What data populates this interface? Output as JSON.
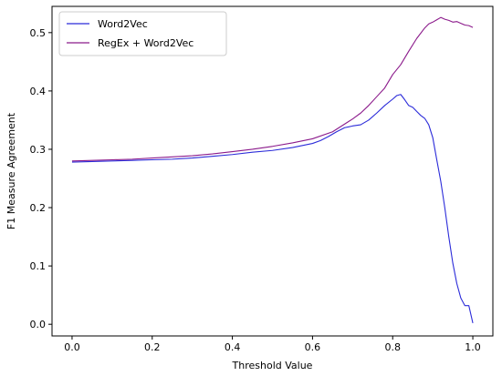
{
  "chart_data": {
    "type": "line",
    "xlabel": "Threshold Value",
    "ylabel": "F1 Measure Agreement",
    "xlim": [
      -0.05,
      1.05
    ],
    "ylim": [
      -0.02,
      0.545
    ],
    "xticks": [
      0.0,
      0.2,
      0.4,
      0.6,
      0.8,
      1.0
    ],
    "xtick_labels": [
      "0.0",
      "0.2",
      "0.4",
      "0.6",
      "0.8",
      "1.0"
    ],
    "yticks": [
      0.0,
      0.1,
      0.2,
      0.3,
      0.4,
      0.5
    ],
    "ytick_labels": [
      "0.0",
      "0.1",
      "0.2",
      "0.3",
      "0.4",
      "0.5"
    ],
    "grid": false,
    "legend": {
      "placement": "top-left"
    },
    "series": [
      {
        "name": "Word2Vec",
        "color": "#2b2bd9",
        "x": [
          0.0,
          0.05,
          0.1,
          0.15,
          0.2,
          0.25,
          0.3,
          0.35,
          0.4,
          0.45,
          0.5,
          0.55,
          0.6,
          0.62,
          0.64,
          0.66,
          0.68,
          0.7,
          0.72,
          0.74,
          0.76,
          0.78,
          0.8,
          0.81,
          0.82,
          0.83,
          0.84,
          0.85,
          0.86,
          0.87,
          0.88,
          0.89,
          0.9,
          0.91,
          0.92,
          0.93,
          0.94,
          0.95,
          0.96,
          0.97,
          0.98,
          0.99,
          1.0
        ],
        "y": [
          0.278,
          0.279,
          0.28,
          0.281,
          0.282,
          0.283,
          0.285,
          0.288,
          0.291,
          0.295,
          0.298,
          0.303,
          0.31,
          0.315,
          0.322,
          0.33,
          0.337,
          0.34,
          0.342,
          0.35,
          0.362,
          0.375,
          0.386,
          0.392,
          0.394,
          0.385,
          0.375,
          0.372,
          0.365,
          0.358,
          0.353,
          0.342,
          0.32,
          0.282,
          0.245,
          0.2,
          0.15,
          0.105,
          0.07,
          0.045,
          0.032,
          0.032,
          0.002
        ]
      },
      {
        "name": "RegEx + Word2Vec",
        "color": "#8b1a8b",
        "x": [
          0.0,
          0.05,
          0.1,
          0.15,
          0.2,
          0.25,
          0.3,
          0.35,
          0.4,
          0.45,
          0.5,
          0.55,
          0.6,
          0.65,
          0.7,
          0.72,
          0.74,
          0.76,
          0.78,
          0.8,
          0.82,
          0.84,
          0.86,
          0.88,
          0.89,
          0.9,
          0.91,
          0.92,
          0.93,
          0.94,
          0.95,
          0.96,
          0.97,
          0.98,
          0.99,
          1.0
        ],
        "y": [
          0.28,
          0.281,
          0.282,
          0.283,
          0.285,
          0.287,
          0.289,
          0.292,
          0.296,
          0.3,
          0.305,
          0.311,
          0.318,
          0.33,
          0.352,
          0.362,
          0.375,
          0.39,
          0.405,
          0.428,
          0.445,
          0.468,
          0.49,
          0.508,
          0.515,
          0.518,
          0.522,
          0.526,
          0.523,
          0.521,
          0.518,
          0.519,
          0.516,
          0.513,
          0.512,
          0.509
        ]
      }
    ]
  }
}
